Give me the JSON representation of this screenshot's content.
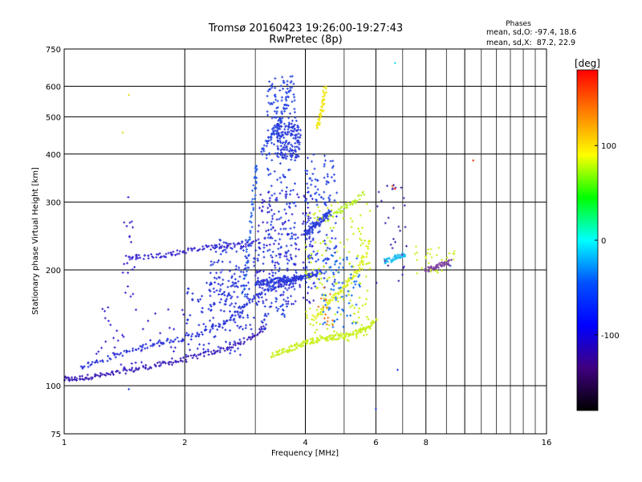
{
  "chart_data": {
    "type": "scatter",
    "title": "Tromsø 20160423 19:26:00-19:27:43",
    "subtitle": "RwPretec (8p)",
    "xlabel": "Frequency [MHz]",
    "ylabel": "Stationary phase Virtual Height [km]",
    "x_scale": "log",
    "y_scale": "log",
    "xlim": [
      1,
      16
    ],
    "ylim": [
      75,
      750
    ],
    "x_ticks": [
      1,
      2,
      4,
      6,
      8,
      16
    ],
    "y_ticks": [
      75,
      100,
      200,
      300,
      400,
      500,
      600,
      750
    ],
    "x_grid": [
      1,
      2,
      3,
      4,
      5,
      6,
      7,
      8,
      9,
      10,
      11,
      12,
      13,
      14,
      15,
      16
    ],
    "y_grid": [
      75,
      100,
      200,
      300,
      400,
      500,
      600,
      750
    ],
    "stats": {
      "heading": "Phases",
      "line_o": "mean, sd,O: -97.4, 18.6",
      "line_x": "mean, sd,X:  87.2, 22.9"
    },
    "colorbar": {
      "label": "[deg]",
      "min": -180,
      "max": 180,
      "ticks": [
        100,
        0,
        -100
      ],
      "colors": [
        "#ff0000",
        "#ff8000",
        "#ffff00",
        "#00ff00",
        "#00ffff",
        "#0050ff",
        "#0000ff",
        "#400080",
        "#000000"
      ]
    },
    "traces": [
      {
        "color": "#3d1fb8",
        "f": [
          1.0,
          1.05,
          1.12,
          1.2,
          1.3,
          1.42,
          1.55,
          1.7,
          1.85,
          2.0,
          2.2,
          2.4,
          2.6,
          2.8,
          3.0,
          3.2
        ],
        "h": [
          104,
          104,
          105,
          106,
          107,
          109,
          111,
          113,
          115,
          117,
          120,
          123,
          126,
          130,
          136,
          143
        ]
      },
      {
        "color": "#2a35d8",
        "f": [
          1.1,
          1.2,
          1.35,
          1.5,
          1.65,
          1.8,
          2.0,
          2.2,
          2.4,
          2.6,
          2.8,
          3.0,
          3.2,
          3.4,
          3.6,
          3.8
        ],
        "h": [
          112,
          115,
          120,
          124,
          128,
          131,
          133,
          137,
          142,
          150,
          160,
          170,
          177,
          182,
          185,
          186
        ]
      },
      {
        "color": "#3a2ad0",
        "f": [
          1.45,
          1.55,
          1.7,
          1.85,
          2.0,
          2.2,
          2.4,
          2.6,
          2.8,
          3.0
        ],
        "h": [
          215,
          216,
          218,
          220,
          224,
          228,
          230,
          231,
          232,
          234
        ]
      },
      {
        "color": "#2060e8",
        "f": [
          2.8,
          2.85,
          2.9,
          2.95,
          3.0,
          3.05
        ],
        "h": [
          170,
          200,
          240,
          290,
          340,
          380
        ]
      },
      {
        "color": "#2a48e0",
        "f": [
          3.1,
          3.2,
          3.3,
          3.4,
          3.5,
          3.6,
          3.7
        ],
        "h": [
          400,
          430,
          450,
          470,
          500,
          560,
          620
        ]
      },
      {
        "color": "#2a3ad8",
        "f": [
          3.0,
          3.1,
          3.2,
          3.3,
          3.4,
          3.5,
          3.6,
          3.7,
          3.8,
          3.9,
          4.0,
          4.1,
          4.2,
          4.4
        ],
        "h": [
          185,
          185,
          186,
          187,
          188,
          188,
          189,
          190,
          190,
          191,
          192,
          193,
          195,
          198
        ]
      },
      {
        "color": "#c8f020",
        "f": [
          3.3,
          3.45,
          3.6,
          3.75,
          3.9,
          4.05,
          4.2,
          4.4,
          4.6,
          4.8,
          5.0,
          5.2,
          5.4,
          5.6,
          5.8,
          6.0
        ],
        "h": [
          120,
          122,
          124,
          126,
          128,
          130,
          131,
          132,
          133,
          134,
          135,
          136,
          138,
          140,
          142,
          148
        ]
      },
      {
        "color": "#e0f020",
        "f": [
          4.2,
          4.4,
          4.6,
          4.8,
          5.0,
          5.2,
          5.4,
          5.6,
          5.8
        ],
        "h": [
          150,
          157,
          165,
          172,
          180,
          190,
          200,
          215,
          240
        ]
      },
      {
        "color": "#f0e818",
        "f": [
          4.3,
          4.35,
          4.4,
          4.45,
          4.5
        ],
        "h": [
          470,
          490,
          520,
          560,
          600
        ]
      },
      {
        "color": "#b8f030",
        "f": [
          4.5,
          4.8,
          5.0,
          5.3,
          5.6
        ],
        "h": [
          270,
          280,
          290,
          300,
          320
        ]
      },
      {
        "color": "#2a3ad8",
        "f": [
          4.0,
          4.1,
          4.2,
          4.3,
          4.4,
          4.5,
          4.6
        ],
        "h": [
          250,
          255,
          260,
          265,
          270,
          275,
          280
        ]
      },
      {
        "color": "#20c0f0",
        "f": [
          6.3,
          6.5,
          6.7,
          6.9,
          7.1
        ],
        "h": [
          210,
          212,
          215,
          218,
          220
        ]
      },
      {
        "color": "#8040a0",
        "f": [
          8.0,
          8.3,
          8.6,
          8.9,
          9.2
        ],
        "h": [
          200,
          202,
          205,
          207,
          210
        ]
      }
    ],
    "clouds": [
      {
        "color": "#2a3ad8",
        "f": [
          2.3,
          3.2
        ],
        "h": [
          140,
          240
        ],
        "n": 160
      },
      {
        "color": "#2a48e0",
        "f": [
          3.2,
          3.8
        ],
        "h": [
          150,
          640
        ],
        "n": 260
      },
      {
        "color": "#3a2ad0",
        "f": [
          3.0,
          4.2
        ],
        "h": [
          160,
          320
        ],
        "n": 160
      },
      {
        "color": "#2a48e0",
        "f": [
          4.0,
          4.8
        ],
        "h": [
          180,
          400
        ],
        "n": 150
      },
      {
        "color": "#c8f020",
        "f": [
          4.0,
          5.8
        ],
        "h": [
          130,
          300
        ],
        "n": 170
      },
      {
        "color": "#1a70f0",
        "f": [
          4.4,
          5.5
        ],
        "h": [
          140,
          220
        ],
        "n": 70
      },
      {
        "color": "#2a35d8",
        "f": [
          2.0,
          2.8
        ],
        "h": [
          120,
          190
        ],
        "n": 100
      },
      {
        "color": "#3a2ad0",
        "f": [
          1.2,
          2.0
        ],
        "h": [
          110,
          160
        ],
        "n": 45
      },
      {
        "color": "#4a2ab0",
        "f": [
          6.0,
          7.2
        ],
        "h": [
          180,
          340
        ],
        "n": 30
      },
      {
        "color": "#d0f030",
        "f": [
          7.5,
          9.5
        ],
        "h": [
          195,
          230
        ],
        "n": 30
      },
      {
        "color": "#3a2ad0",
        "f": [
          1.4,
          1.5
        ],
        "h": [
          170,
          320
        ],
        "n": 20
      },
      {
        "color": "#f08020",
        "f": [
          4.3,
          4.7
        ],
        "h": [
          140,
          180
        ],
        "n": 15
      },
      {
        "color": "#2a3ad8",
        "f": [
          3.4,
          3.9
        ],
        "h": [
          390,
          480
        ],
        "n": 140
      }
    ],
    "points": [
      {
        "f": 1.45,
        "h": 570,
        "color": "#e0e020"
      },
      {
        "f": 1.4,
        "h": 455,
        "color": "#e0e020"
      },
      {
        "f": 6.7,
        "h": 690,
        "color": "#20e0f0"
      },
      {
        "f": 6.0,
        "h": 87,
        "color": "#2a3ad8"
      },
      {
        "f": 10.5,
        "h": 385,
        "color": "#f04020"
      },
      {
        "f": 6.8,
        "h": 110,
        "color": "#2a48e0"
      },
      {
        "f": 1.45,
        "h": 98,
        "color": "#2a48e0"
      },
      {
        "f": 6.6,
        "h": 330,
        "color": "#f06020"
      },
      {
        "f": 6.7,
        "h": 325,
        "color": "#f04020"
      },
      {
        "f": 9.2,
        "h": 205,
        "color": "#2a3ad8"
      }
    ]
  }
}
